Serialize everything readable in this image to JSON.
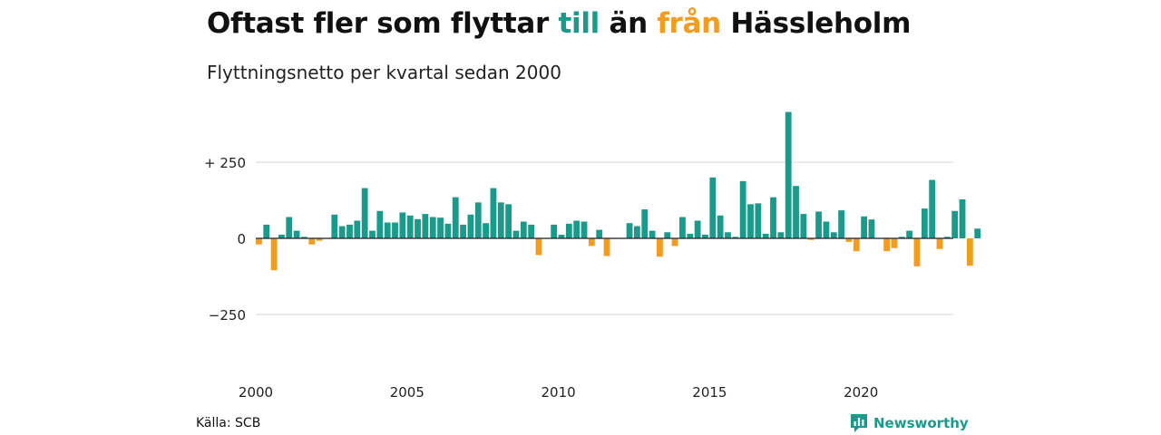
{
  "header": {
    "title_pre": "Oftast fler som flyttar ",
    "title_in": "till",
    "title_mid": " än ",
    "title_out": "från",
    "title_post": " Hässleholm",
    "subtitle": "Flyttningsnetto per kvartal sedan 2000"
  },
  "colors": {
    "in": "#1a9a8b",
    "out": "#f39c1f",
    "grid": "#d9d9d9"
  },
  "chart_data": {
    "type": "bar",
    "x_start": "2000 Q1",
    "frequency": "quarterly",
    "ylim": [
      -300,
      400
    ],
    "yticks": [
      250,
      0,
      -250
    ],
    "ytick_labels": [
      "+ 250",
      "0",
      "−250"
    ],
    "xtick_labels": [
      "2000",
      "2005",
      "2010",
      "2015",
      "2020"
    ],
    "values": [
      -20,
      45,
      -105,
      12,
      70,
      25,
      5,
      -20,
      -8,
      0,
      78,
      40,
      45,
      58,
      165,
      25,
      90,
      52,
      52,
      85,
      75,
      63,
      80,
      70,
      68,
      48,
      135,
      45,
      78,
      118,
      50,
      165,
      118,
      112,
      25,
      55,
      45,
      -55,
      0,
      45,
      12,
      48,
      58,
      55,
      -25,
      28,
      -58,
      0,
      0,
      50,
      40,
      95,
      25,
      -60,
      20,
      -25,
      70,
      15,
      58,
      12,
      200,
      75,
      20,
      5,
      188,
      112,
      115,
      15,
      135,
      20,
      415,
      172,
      80,
      -5,
      88,
      55,
      20,
      92,
      -12,
      -42,
      72,
      62,
      0,
      -42,
      -32,
      5,
      25,
      -92,
      98,
      192,
      -35,
      5,
      90,
      128,
      -90,
      32
    ]
  },
  "footer": {
    "source": "Källa: SCB",
    "brand": "Newsworthy"
  }
}
